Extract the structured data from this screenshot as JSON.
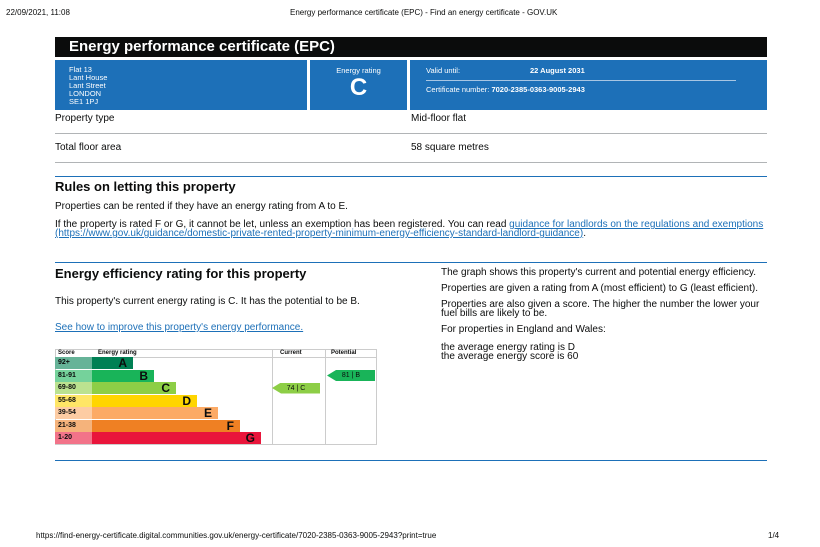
{
  "print_header": {
    "datetime": "22/09/2021, 11:08",
    "title": "Energy performance certificate (EPC) - Find an energy certificate - GOV.UK"
  },
  "title": "Energy performance certificate (EPC)",
  "address": [
    "Flat 13",
    "Lant House",
    "Lant Street",
    "LONDON",
    "SE1 1PJ"
  ],
  "rating": {
    "label": "Energy rating",
    "value": "C"
  },
  "valid": {
    "label": "Valid until:",
    "value": "22 August 2031"
  },
  "certificate": {
    "label": "Certificate number:",
    "value": "7020-2385-0363-9005-2943"
  },
  "property": [
    {
      "label": "Property type",
      "value": "Mid-floor flat"
    },
    {
      "label": "Total floor area",
      "value": "58 square metres"
    }
  ],
  "rules": {
    "heading": "Rules on letting this property",
    "p1": "Properties can be rented if they have an energy rating from A to E.",
    "p2": "If the property is rated F or G, it cannot be let, unless an exemption has been registered. You can read",
    "link": "guidance for landlords on the regulations and exemptions (https://www.gov.uk/guidance/domestic-private-rented-property-minimum-energy-efficiency-standard-landlord-guidance)",
    "end": "."
  },
  "efficiency": {
    "heading": "Energy efficiency rating for this property",
    "p1": "This property's current energy rating is C. It has the potential to be B.",
    "link": "See how to improve this property's energy performance.",
    "right": [
      "The graph shows this property's current and potential energy efficiency.",
      "Properties are given a rating from A (most efficient) to G (least efficient).",
      "Properties are also given a score. The higher the number the lower your fuel bills are likely to be.",
      "For properties in England and Wales:"
    ],
    "avg1": "the average energy rating is D",
    "avg2": "the average energy score is 60"
  },
  "chart": {
    "headers": {
      "score": "Score",
      "rating": "Energy rating",
      "current": "Current",
      "potential": "Potential"
    },
    "bands": [
      {
        "score": "92+",
        "letter": "A",
        "color": "#008054",
        "light": "#66b398"
      },
      {
        "score": "81-91",
        "letter": "B",
        "color": "#19b459",
        "light": "#75d29b"
      },
      {
        "score": "69-80",
        "letter": "C",
        "color": "#8dce46",
        "light": "#bbe290"
      },
      {
        "score": "55-68",
        "letter": "D",
        "color": "#ffd500",
        "light": "#ffe666"
      },
      {
        "score": "39-54",
        "letter": "E",
        "color": "#fcaa65",
        "light": "#fdcca3"
      },
      {
        "score": "21-38",
        "letter": "F",
        "color": "#ef8023",
        "light": "#f5b37b"
      },
      {
        "score": "1-20",
        "letter": "G",
        "color": "#e9153b",
        "light": "#f27389"
      }
    ],
    "current": {
      "label": "74 | C",
      "score": 74,
      "band": "C"
    },
    "potential": {
      "label": "81 | B",
      "score": 81,
      "band": "B"
    }
  },
  "footer": {
    "url": "https://find-energy-certificate.digital.communities.gov.uk/energy-certificate/7020-2385-0363-9005-2943?print=true",
    "page": "1/4"
  }
}
